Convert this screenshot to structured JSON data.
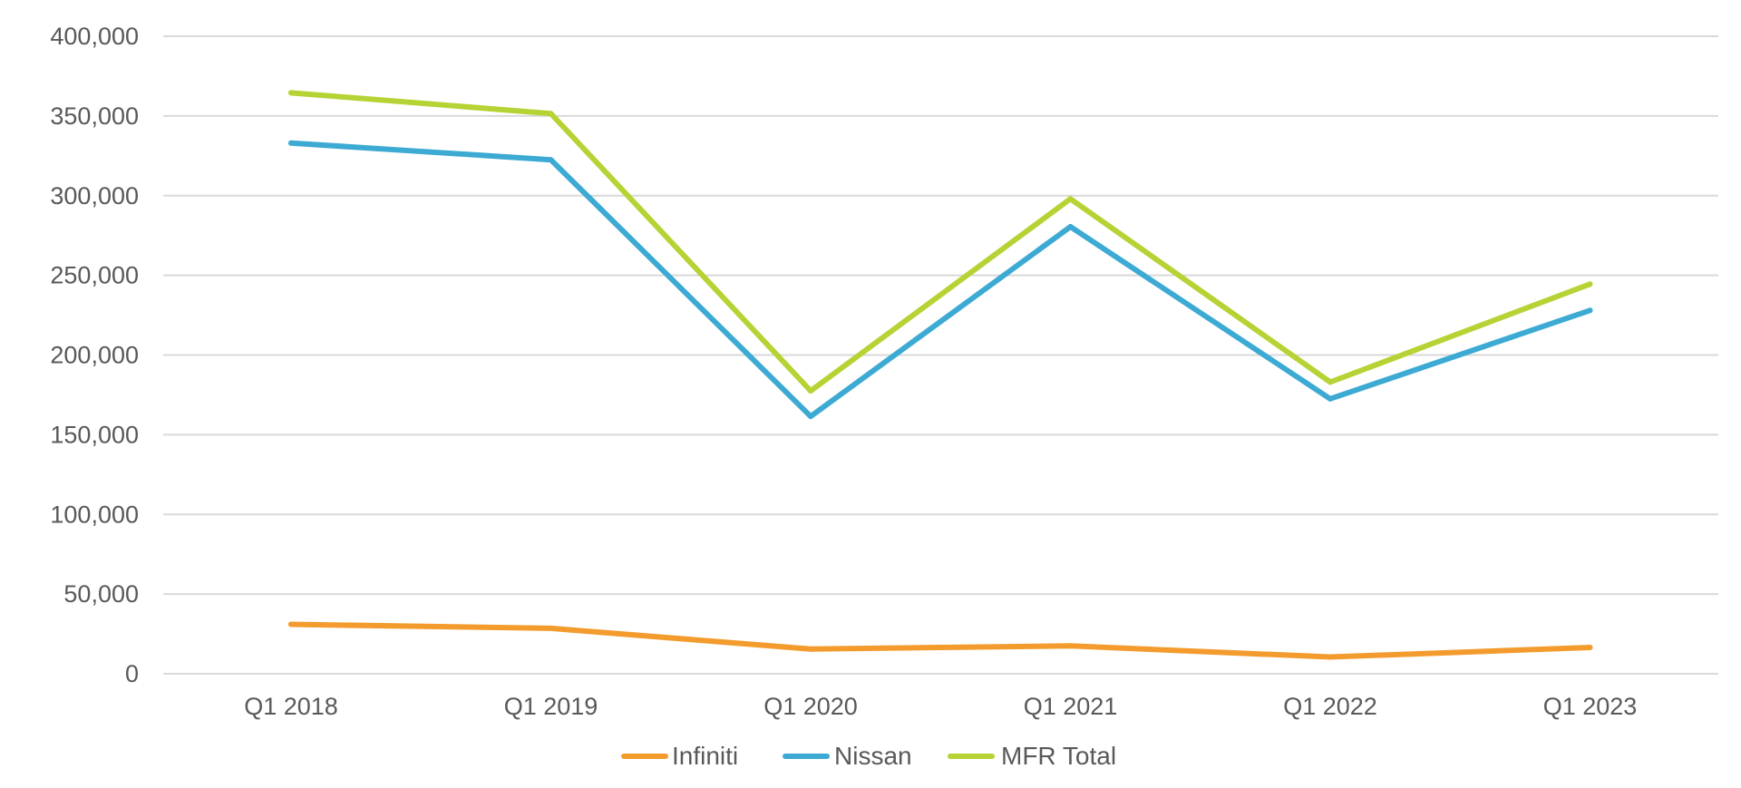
{
  "chart_data": {
    "type": "line",
    "title": "",
    "xlabel": "",
    "ylabel": "",
    "categories": [
      "Q1 2018",
      "Q1 2019",
      "Q1 2020",
      "Q1 2021",
      "Q1 2022",
      "Q1 2023"
    ],
    "ylim": [
      0,
      400000
    ],
    "yticks": [
      0,
      50000,
      100000,
      150000,
      200000,
      250000,
      300000,
      350000,
      400000
    ],
    "ytick_labels": [
      "0",
      "50,000",
      "100,000",
      "150,000",
      "200,000",
      "250,000",
      "300,000",
      "350,000",
      "400,000"
    ],
    "grid": true,
    "legend_position": "bottom",
    "series": [
      {
        "name": "Infiniti",
        "color": "#F39C2D",
        "values": [
          31000,
          28500,
          15500,
          17500,
          10500,
          16500
        ]
      },
      {
        "name": "Nissan",
        "color": "#3CAAD3",
        "values": [
          333000,
          322500,
          161500,
          280500,
          172500,
          228000
        ]
      },
      {
        "name": "MFR Total",
        "color": "#B5D334",
        "values": [
          364500,
          351500,
          177500,
          298000,
          183000,
          244500
        ]
      }
    ]
  }
}
